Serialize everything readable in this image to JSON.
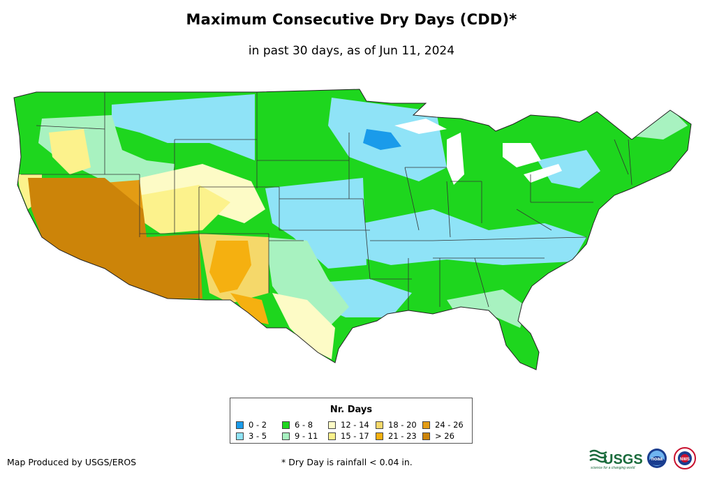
{
  "title": "Maximum Consecutive Dry Days (CDD)*",
  "subtitle": "in past 30 days, as of Jun 11, 2024",
  "legend": {
    "title": "Nr. Days",
    "items": [
      {
        "label": "0 - 2",
        "color": "#1a9bea"
      },
      {
        "label": "3 - 5",
        "color": "#8fe3f7"
      },
      {
        "label": "6 - 8",
        "color": "#1ed61e"
      },
      {
        "label": "9 - 11",
        "color": "#a8f2c0"
      },
      {
        "label": "12 - 14",
        "color": "#fdfbc6"
      },
      {
        "label": "15 - 17",
        "color": "#fcf28c"
      },
      {
        "label": "18 - 20",
        "color": "#f5d86a"
      },
      {
        "label": "21 - 23",
        "color": "#f5b010"
      },
      {
        "label": "24 - 26",
        "color": "#e39c14"
      },
      {
        "label": "> 26",
        "color": "#cc8409"
      }
    ]
  },
  "credit": "Map Produced by USGS/EROS",
  "footnote": "* Dry Day is rainfall < 0.04 in.",
  "logos": {
    "usgs": "USGS",
    "usgs_tagline": "science for a changing world",
    "noaa": "noaa",
    "nws": "NWS"
  }
}
